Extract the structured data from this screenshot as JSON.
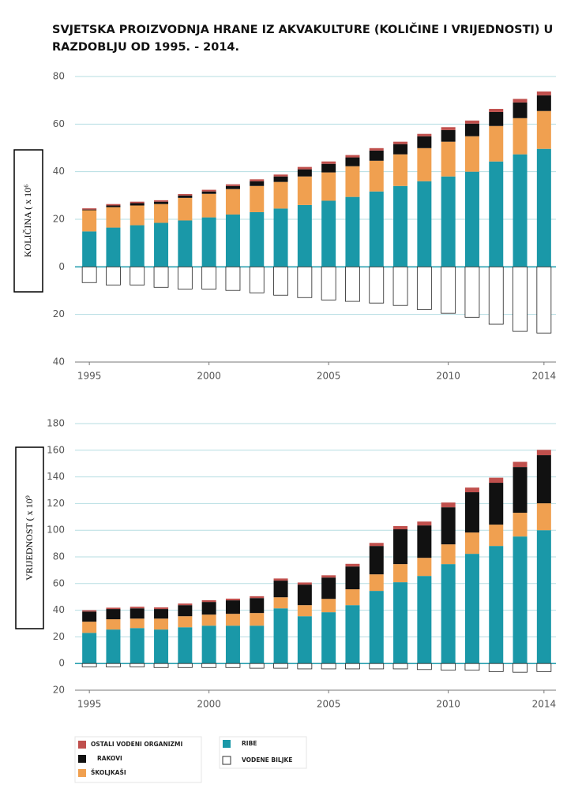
{
  "chart_data": [
    {
      "type": "bar",
      "stacked": true,
      "title": [
        "SVJETSKA PROIZVODNJA HRANE IZ AKVAKULTURE (KOLIČINE I VRIJEDNOSTI) U",
        "RAZDOBLJU OD 1995. - 2014."
      ],
      "y_label": "KOLIČINA ( x 10⁶",
      "categories": [
        "1995",
        null,
        null,
        null,
        null,
        "2000",
        null,
        null,
        null,
        null,
        "2005",
        null,
        null,
        null,
        null,
        "2010",
        null,
        null,
        null,
        "2014"
      ],
      "ylim": [
        -40,
        80
      ],
      "yticks": [
        {
          "value": -40,
          "label": "40"
        },
        {
          "value": -20,
          "label": "20"
        },
        0,
        20,
        40,
        60,
        80
      ],
      "grid": true,
      "series": [
        {
          "name": "RIBE",
          "color": "#1a98a8",
          "values": [
            14.9,
            16.5,
            17.5,
            18.5,
            19.5,
            20.8,
            22,
            23,
            24.5,
            26,
            27.8,
            29.4,
            31.7,
            34,
            36,
            38,
            40,
            44.3,
            47.3,
            49.6
          ]
        },
        {
          "name": "ŠKOLJKAŠI",
          "color": "#f0a050",
          "values": [
            8.9,
            8.6,
            8.3,
            7.9,
            9.5,
            9.9,
            10.7,
            11,
            11.2,
            12,
            11.9,
            12.9,
            12.9,
            13.3,
            13.9,
            14.6,
            14.9,
            14.9,
            15.2,
            15.9
          ]
        },
        {
          "name": "RAKOVI",
          "color": "#111111",
          "values": [
            0.3,
            0.7,
            1,
            1,
            1,
            1,
            1.3,
            2,
            2.3,
            3,
            3.6,
            3.7,
            4.3,
            4.3,
            5,
            4.9,
            5.3,
            5.9,
            6.6,
            6.6
          ]
        },
        {
          "name": "OSTALI VODENI ORGANIZMI",
          "color": "#c0504d",
          "values": [
            0.5,
            0.6,
            0.6,
            0.6,
            0.6,
            0.7,
            0.7,
            0.8,
            0.8,
            1,
            1,
            1,
            1,
            1,
            1,
            1.2,
            1.3,
            1.3,
            1.5,
            1.6
          ]
        },
        {
          "name": "VODENE BILJKE",
          "color": "#ffffff",
          "values": [
            -6.6,
            -7.6,
            -7.6,
            -8.6,
            -9.3,
            -9.3,
            -9.9,
            -10.9,
            -11.9,
            -12.9,
            -13.9,
            -14.5,
            -15.2,
            -16.2,
            -17.9,
            -19.5,
            -21.2,
            -24.1,
            -27.1,
            -27.8
          ]
        }
      ]
    },
    {
      "type": "bar",
      "stacked": true,
      "y_label": "VRIJEDNOST ( x 10⁹",
      "categories": [
        "1995",
        null,
        null,
        null,
        null,
        "2000",
        null,
        null,
        null,
        null,
        "2005",
        null,
        null,
        null,
        null,
        "2010",
        null,
        null,
        null,
        "2014"
      ],
      "ylim": [
        -20,
        180
      ],
      "yticks": [
        {
          "value": -20,
          "label": "20"
        },
        0,
        20,
        40,
        60,
        80,
        100,
        120,
        140,
        160,
        180
      ],
      "grid": true,
      "series": [
        {
          "name": "RIBE",
          "color": "#1a98a8",
          "values": [
            23,
            25.5,
            26.6,
            25.5,
            27.2,
            28.4,
            28.4,
            28.4,
            41.4,
            35.5,
            38.5,
            43.8,
            54.5,
            61,
            65.7,
            74.6,
            82.3,
            88.2,
            95.3,
            100
          ]
        },
        {
          "name": "ŠKOLJKAŠI",
          "color": "#f0a050",
          "values": [
            8.4,
            7.7,
            7.1,
            8.2,
            8.3,
            8.3,
            8.9,
            9.5,
            8.3,
            8.3,
            10,
            11.9,
            12.4,
            13.6,
            13.6,
            14.8,
            16,
            16,
            17.8,
            20.2
          ]
        },
        {
          "name": "RAKOVI",
          "color": "#111111",
          "values": [
            7.6,
            7.7,
            7.7,
            7.2,
            8.3,
            9.5,
            10.1,
            11.2,
            12.5,
            15.4,
            16,
            17.1,
            21.3,
            26.1,
            24.3,
            27.8,
            30.2,
            31.4,
            34.3,
            36.1
          ]
        },
        {
          "name": "OSTALI VODENI ORGANIZMI",
          "color": "#c0504d",
          "values": [
            1,
            1,
            1.2,
            1.2,
            1.2,
            1.3,
            1.3,
            1.4,
            1.6,
            1.6,
            1.7,
            2,
            2.3,
            2.4,
            2.9,
            3.6,
            3.5,
            3.8,
            3.9,
            4
          ]
        },
        {
          "name": "VODENE BILJKE",
          "color": "#ffffff",
          "values": [
            -2.5,
            -2.5,
            -2.5,
            -3,
            -3,
            -3,
            -3,
            -3.5,
            -3.5,
            -4,
            -4,
            -4,
            -4,
            -4,
            -4.5,
            -5,
            -5,
            -6,
            -6.5,
            -6
          ]
        }
      ]
    }
  ]
}
